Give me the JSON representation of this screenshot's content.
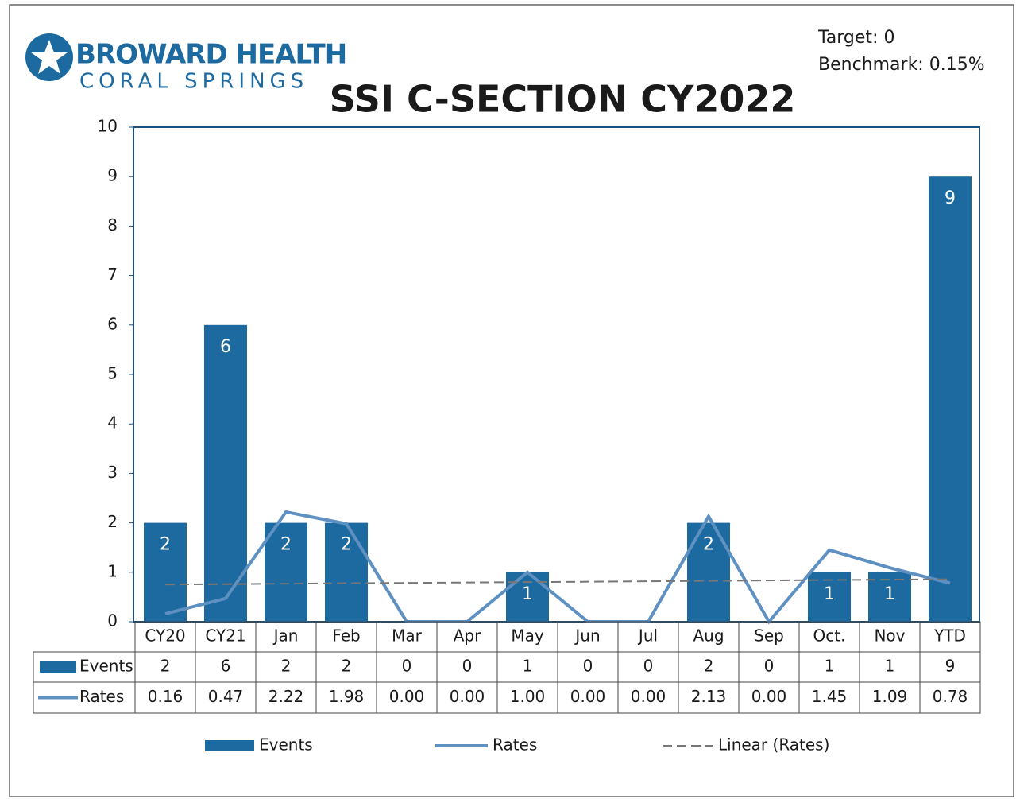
{
  "header": {
    "logo": [
      "BROWARD HEALTH",
      "CORAL SPRINGS"
    ],
    "target": "Target: 0",
    "benchmark": "Benchmark: 0.15%"
  },
  "chart_data": {
    "type": "bar",
    "title": "SSI C-SECTION CY2022",
    "categories": [
      "CY20",
      "CY21",
      "Jan",
      "Feb",
      "Mar",
      "Apr",
      "May",
      "Jun",
      "Jul",
      "Aug",
      "Sep",
      "Oct.",
      "Nov",
      "YTD"
    ],
    "series": [
      {
        "name": "Events",
        "type": "bar",
        "color": "#1d6aa0",
        "values": [
          2,
          6,
          2,
          2,
          0,
          0,
          1,
          0,
          0,
          2,
          0,
          1,
          1,
          9
        ]
      },
      {
        "name": "Rates",
        "type": "line",
        "color": "#5e90c2",
        "values": [
          0.16,
          0.47,
          2.22,
          1.98,
          0,
          0,
          1,
          0,
          0,
          2.13,
          0,
          1.45,
          1.09,
          0.78
        ],
        "value_labels": [
          "0.16",
          "0.47",
          "2.22",
          "1.98",
          "0.00",
          "0.00",
          "1.00",
          "0.00",
          "0.00",
          "2.13",
          "0.00",
          "1.45",
          "1.09",
          "0.78"
        ]
      }
    ],
    "trendline": {
      "name": "Linear (Rates)",
      "color": "#777777"
    },
    "ylim": [
      0,
      10
    ],
    "yticks": [
      0,
      1,
      2,
      3,
      4,
      5,
      6,
      7,
      8,
      9,
      10
    ],
    "legend": "bottom"
  }
}
